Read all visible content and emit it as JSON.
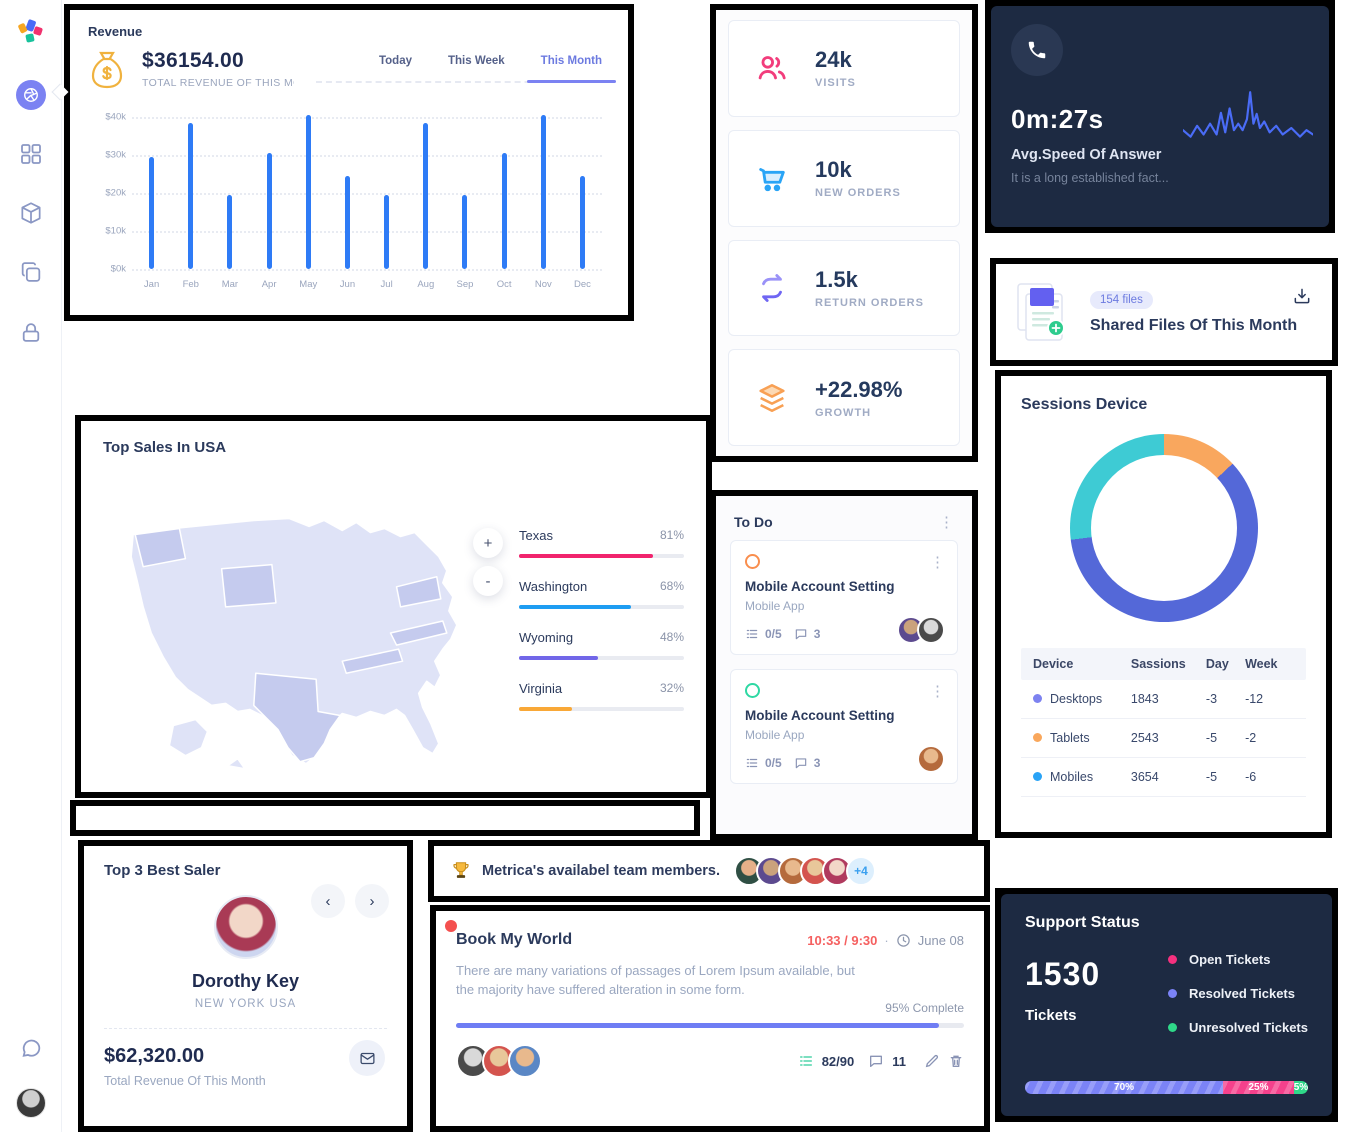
{
  "colors": {
    "accent_purple": "#6c7ae0",
    "bar_blue": "#2e7bf6",
    "dark_card": "#1d2a42",
    "pink": "#f23d7c",
    "order_blue": "#29a4f6",
    "return_purple": "#7a70f6",
    "growth_orange": "#f8a054",
    "donut_indigo": "#5468d8",
    "donut_teal": "#3ecbd4",
    "donut_orange": "#f9a75e"
  },
  "sidebar": {
    "icons": [
      "logo",
      "dashboard",
      "widgets",
      "products",
      "pages",
      "lock",
      "chat",
      "profile"
    ],
    "active": "dashboard"
  },
  "revenue": {
    "title": "Revenue",
    "amount": "$36154.00",
    "subtitle": "TOTAL REVENUE OF THIS MONTH",
    "tabs": [
      "Today",
      "This Week",
      "This Month"
    ],
    "active_tab": "This Month"
  },
  "stats": {
    "items": [
      {
        "value": "24k",
        "label": "VISITS",
        "icon": "users-icon",
        "color": "#f23d7c"
      },
      {
        "value": "10k",
        "label": "NEW ORDERS",
        "icon": "cart-icon",
        "color": "#29a4f6"
      },
      {
        "value": "1.5k",
        "label": "RETURN ORDERS",
        "icon": "repeat-icon",
        "color": "#7a70f6"
      },
      {
        "value": "+22.98%",
        "label": "GROWTH",
        "icon": "layers-icon",
        "color": "#f8a054"
      }
    ]
  },
  "avg_speed": {
    "value": "0m:27s",
    "title": "Avg.Speed Of Answer",
    "subtitle": "It is a long established fact...",
    "icon": "phone-icon"
  },
  "shared_files": {
    "badge": "154 files",
    "title": "Shared Files Of This Month"
  },
  "sessions": {
    "title": "Sessions Device"
  },
  "top_sales": {
    "title": "Top Sales In USA",
    "zoom_in": "+",
    "zoom_out": "-"
  },
  "todo": {
    "title": "To Do",
    "tasks": [
      {
        "title": "Mobile Account Setting",
        "subtitle": "Mobile App",
        "checklist": "0/5",
        "comments": "3",
        "status_color": "#f98e4e",
        "avatars": 2
      },
      {
        "title": "Mobile Account Setting",
        "subtitle": "Mobile App",
        "checklist": "0/5",
        "comments": "3",
        "status_color": "#2ed8a3",
        "avatars": 1
      }
    ]
  },
  "best_saler": {
    "title": "Top 3 Best Saler",
    "name": "Dorothy Key",
    "location": "NEW YORK USA",
    "amount": "$62,320.00",
    "caption": "Total Revenue Of This Month"
  },
  "team": {
    "text": "Metrica's availabel team members.",
    "more": "+4",
    "avatars": 5
  },
  "task_card": {
    "title": "Book My World",
    "time": "10:33 / 9:30",
    "separator": "·",
    "date": "June 08",
    "description": "There are many variations of passages of Lorem Ipsum available, but the majority have suffered alteration in some form.",
    "progress_label": "95% Complete",
    "checklist": "82/90",
    "comments": "11"
  },
  "support": {
    "title": "Support Status",
    "count": "1530",
    "unit": "Tickets",
    "legend": [
      {
        "label": "Open Tickets",
        "color": "#f5317f"
      },
      {
        "label": "Resolved Tickets",
        "color": "#7b83f7"
      },
      {
        "label": "Unresolved Tickets",
        "color": "#2fd889"
      }
    ]
  },
  "chart_data": {
    "revenue_bars": {
      "type": "bar",
      "title": "Revenue - This Month",
      "categories": [
        "Jan",
        "Feb",
        "Mar",
        "Apr",
        "May",
        "Jun",
        "Jul",
        "Aug",
        "Sep",
        "Oct",
        "Nov",
        "Dec"
      ],
      "values": [
        29.5,
        38.5,
        19.5,
        30.5,
        40.5,
        24.5,
        19.5,
        38.5,
        19.5,
        30.5,
        40.5,
        24.5
      ],
      "unit": "$k",
      "yticks": [
        "$0k",
        "$10k",
        "$20k",
        "$30k",
        "$40k"
      ],
      "ylim": [
        0,
        40
      ],
      "grid": "dotted",
      "bar_color": "#2e7bf6"
    },
    "sessions_donut": {
      "type": "pie",
      "title": "Sessions Device",
      "slices": [
        {
          "pct": 13,
          "color": "#f9a75e"
        },
        {
          "pct": 60,
          "color": "#5468d8"
        },
        {
          "pct": 27,
          "color": "#3ecbd4"
        }
      ],
      "start_angle": "top",
      "hole": true
    },
    "sessions_table": {
      "type": "table",
      "headers": [
        "Device",
        "Sassions",
        "Day",
        "Week"
      ],
      "rows": [
        [
          "Desktops",
          "1843",
          "-3",
          "-12"
        ],
        [
          "Tablets",
          "2543",
          "-5",
          "-2"
        ],
        [
          "Mobiles",
          "3654",
          "-5",
          "-6"
        ]
      ],
      "dot_colors": [
        "#7d82f0",
        "#f9a75c",
        "#29a3f6"
      ]
    },
    "top_sales_bars": {
      "type": "bar",
      "orientation": "horizontal",
      "categories": [
        "Texas",
        "Washington",
        "Wyoming",
        "Virginia"
      ],
      "values": [
        81,
        68,
        48,
        32
      ],
      "labels": [
        "81%",
        "68%",
        "48%",
        "32%"
      ],
      "colors": [
        "#f1246d",
        "#1e9df2",
        "#7166e8",
        "#f9a837"
      ],
      "xlim": [
        0,
        100
      ]
    },
    "answer_sparkline": {
      "type": "line",
      "color": "#4a6cf7",
      "points": [
        [
          0,
          40
        ],
        [
          7,
          46
        ],
        [
          13,
          36
        ],
        [
          19,
          44
        ],
        [
          25,
          34
        ],
        [
          31,
          44
        ],
        [
          35,
          24
        ],
        [
          39,
          42
        ],
        [
          43,
          20
        ],
        [
          47,
          40
        ],
        [
          51,
          34
        ],
        [
          55,
          40
        ],
        [
          59,
          30
        ],
        [
          62,
          5
        ],
        [
          65,
          34
        ],
        [
          68,
          25
        ],
        [
          71,
          38
        ],
        [
          75,
          32
        ],
        [
          80,
          42
        ],
        [
          86,
          36
        ],
        [
          92,
          44
        ],
        [
          100,
          38
        ],
        [
          108,
          46
        ],
        [
          114,
          40
        ],
        [
          120,
          44
        ]
      ]
    },
    "support_stack": {
      "type": "bar",
      "stacked": true,
      "segments": [
        {
          "label": "70%",
          "pct": 70,
          "color": "#7b83f7",
          "striped": true
        },
        {
          "label": "25%",
          "pct": 25,
          "color": "#f5418c",
          "striped": true
        },
        {
          "label": "5%",
          "pct": 5,
          "color": "#2fd889",
          "striped": false
        }
      ]
    },
    "task_progress": {
      "type": "bar",
      "value": 95,
      "max": 100,
      "color": "#6f7df4"
    }
  }
}
